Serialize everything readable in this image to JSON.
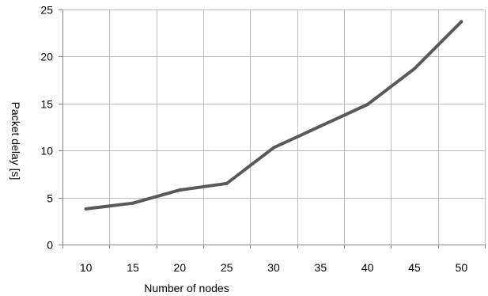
{
  "chart_data": {
    "type": "line",
    "title": "",
    "xlabel": "Number of nodes",
    "ylabel": "Packet delay [s]",
    "categories": [
      "10",
      "15",
      "20",
      "25",
      "30",
      "35",
      "40",
      "45",
      "50"
    ],
    "series": [
      {
        "values": [
          3.8,
          4.4,
          5.8,
          6.5,
          10.3,
          12.6,
          14.9,
          18.7,
          23.7
        ]
      }
    ],
    "ylim": [
      0,
      25
    ],
    "yticks": [
      0,
      5,
      10,
      15,
      20,
      25
    ],
    "grid": true,
    "legend": "none",
    "colors": {
      "line": "#595959",
      "grid": "#bfbfbf",
      "axis": "#868686"
    }
  }
}
